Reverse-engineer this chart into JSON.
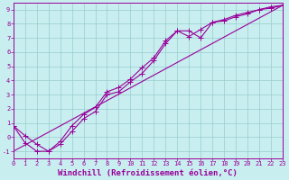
{
  "xlabel": "Windchill (Refroidissement éolien,°C)",
  "xlim": [
    0,
    23
  ],
  "ylim": [
    -1.5,
    9.5
  ],
  "xticks": [
    0,
    1,
    2,
    3,
    4,
    5,
    6,
    7,
    8,
    9,
    10,
    11,
    12,
    13,
    14,
    15,
    16,
    17,
    18,
    19,
    20,
    21,
    22,
    23
  ],
  "yticks": [
    -1,
    0,
    1,
    2,
    3,
    4,
    5,
    6,
    7,
    8,
    9
  ],
  "background_color": "#c8eef0",
  "line_color": "#990099",
  "grid_color": "#99cccc",
  "line1_x": [
    0,
    1,
    2,
    3,
    4,
    5,
    6,
    7,
    8,
    9,
    10,
    11,
    12,
    13,
    14,
    15,
    16,
    17,
    18,
    19,
    20,
    21,
    22,
    23
  ],
  "line1_y": [
    0.8,
    -0.4,
    -1.0,
    -1.0,
    -0.5,
    0.4,
    1.3,
    1.8,
    3.0,
    3.2,
    3.9,
    4.5,
    5.4,
    6.6,
    7.5,
    7.5,
    7.0,
    8.1,
    8.2,
    8.5,
    8.7,
    9.0,
    9.1,
    9.3
  ],
  "line2_x": [
    0,
    1,
    2,
    3,
    4,
    5,
    6,
    7,
    8,
    9,
    10,
    11,
    12,
    13,
    14,
    15,
    16,
    17,
    18,
    19,
    20,
    21,
    22,
    23
  ],
  "line2_y": [
    0.8,
    0.1,
    -0.5,
    -1.0,
    -0.3,
    0.8,
    1.6,
    2.1,
    3.2,
    3.5,
    4.1,
    4.9,
    5.6,
    6.8,
    7.5,
    7.1,
    7.6,
    8.1,
    8.3,
    8.6,
    8.8,
    9.0,
    9.2,
    9.3
  ],
  "line3_x": [
    0,
    23
  ],
  "line3_y": [
    -1.0,
    9.3
  ],
  "marker": "+",
  "marker_size": 4,
  "linewidth": 0.8,
  "font_family": "monospace",
  "tick_fontsize": 5,
  "label_fontsize": 6.5
}
